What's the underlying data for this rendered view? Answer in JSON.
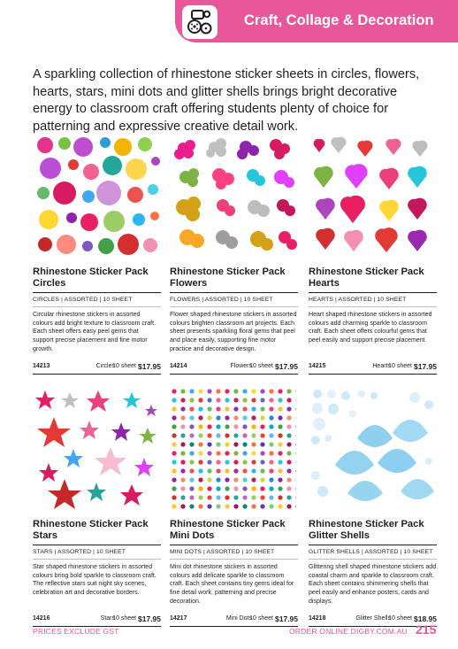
{
  "header": {
    "title": "Craft, Collage & Decoration",
    "icon": "craft-icon",
    "accent_color": "#e8579a"
  },
  "intro": "A sparkling collection of rhinestone sticker sheets in circles, flowers, hearts, stars, mini dots and glitter shells brings bright decorative energy to classroom craft offering students plenty of choice for patterning and expressive creative detail work.",
  "products": [
    {
      "title": "Rhinestone Sticker Pack Circles",
      "specs": "CIRCLES  |  ASSORTED  |  10 SHEET",
      "description": "Circular rhinestone stickers in assorted colours add bright texture to classroom craft. Each sheet offers easy peel gems that support precise placement and fine motor growth.",
      "code": "14213",
      "variant": "Circles",
      "qty": "10 sheet",
      "price": "$17.95",
      "image": "circles-rhinestones"
    },
    {
      "title": "Rhinestone Sticker Pack Flowers",
      "specs": "FLOWERS  |  ASSORTED  |  10 SHEET",
      "description": "Flower shaped rhinestone stickers in assorted colours brighten classroom art projects. Each sheet presents sparkling floral gems that peel and place easily, supporting fine motor practice and decorative design.",
      "code": "14214",
      "variant": "Flowers",
      "qty": "10 sheet",
      "price": "$17.95",
      "image": "flowers-rhinestones"
    },
    {
      "title": "Rhinestone Sticker Pack Hearts",
      "specs": "HEARTS  |  ASSORTED  |  10 SHEET",
      "description": "Heart shaped rhinestone stickers in assorted colours add charming sparkle to classroom craft. Each sheet offers colourful gems that peel easily and support precise placement.",
      "code": "14215",
      "variant": "Hearts",
      "qty": "10 sheet",
      "price": "$17.95",
      "image": "hearts-rhinestones"
    },
    {
      "title": "Rhinestone Sticker Pack Stars",
      "specs": "STARS  |  ASSORTED  |  10 SHEET",
      "description": "Star shaped rhinestone stickers in assorted colours bring bold sparkle to classroom craft. The reflective stars suit night sky scenes, celebration art and decorative borders.",
      "code": "14216",
      "variant": "Stars",
      "qty": "10 sheet",
      "price": "$17.95",
      "image": "stars-rhinestones"
    },
    {
      "title": "Rhinestone Sticker Pack Mini Dots",
      "specs": "MINI DOTS  |  ASSORTED  |  10 SHEET",
      "description": "Mini dot rhinestone stickers in assorted colours add delicate sparkle to classroom craft. Each sheet contains tiny gems ideal for fine detail work, patterning and precise decoration.",
      "code": "14217",
      "variant": "Mini Dots",
      "qty": "10 sheet",
      "price": "$17.95",
      "image": "mini-dots-rhinestones"
    },
    {
      "title": "Rhinestone Sticker Pack Glitter Shells",
      "specs": "GLITTER SHELLS  |  ASSORTED  |  10 SHEET",
      "description": "Glittering shell shaped rhinestone stickers add coastal charm and sparkle to classroom craft. Each sheet contains shimmering shells that peel easily and enhance posters, cards and displays.",
      "code": "14218",
      "variant": "Glitter Shells",
      "qty": "10 sheet",
      "price": "$18.95",
      "image": "glitter-shells-rhinestones"
    }
  ],
  "footer": {
    "left": "PRICES EXCLUDE GST",
    "right": "ORDER ONLINE DIGBY.COM.AU",
    "page": "215"
  }
}
